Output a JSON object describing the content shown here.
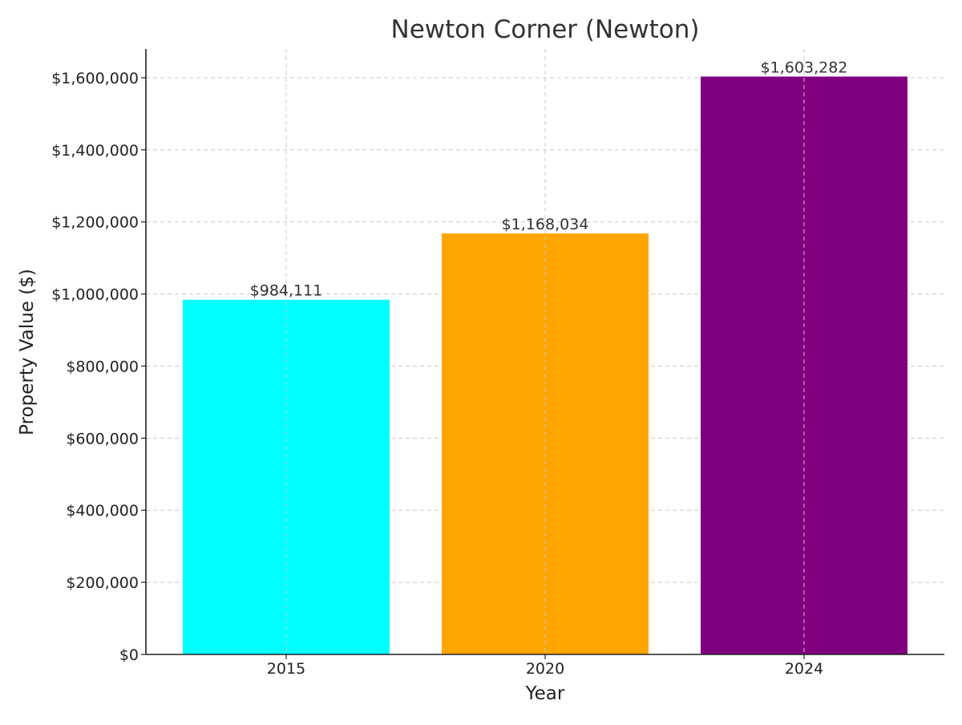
{
  "chart_data": {
    "type": "bar",
    "title": "Newton Corner (Newton)",
    "xlabel": "Year",
    "ylabel": "Property Value ($)",
    "categories": [
      "2015",
      "2020",
      "2024"
    ],
    "values": [
      984111,
      1168034,
      1603282
    ],
    "value_labels": [
      "$984,111",
      "$1,168,034",
      "$1,603,282"
    ],
    "colors": [
      "#00ffff",
      "#ffa500",
      "#800080"
    ],
    "ylim": [
      0,
      1680000
    ],
    "yticks": [
      0,
      200000,
      400000,
      600000,
      800000,
      1000000,
      1200000,
      1400000,
      1600000
    ],
    "ytick_labels": [
      "$0",
      "$200,000",
      "$400,000",
      "$600,000",
      "$800,000",
      "$1,000,000",
      "$1,200,000",
      "$1,400,000",
      "$1,600,000"
    ],
    "grid": true,
    "legend": "none"
  }
}
